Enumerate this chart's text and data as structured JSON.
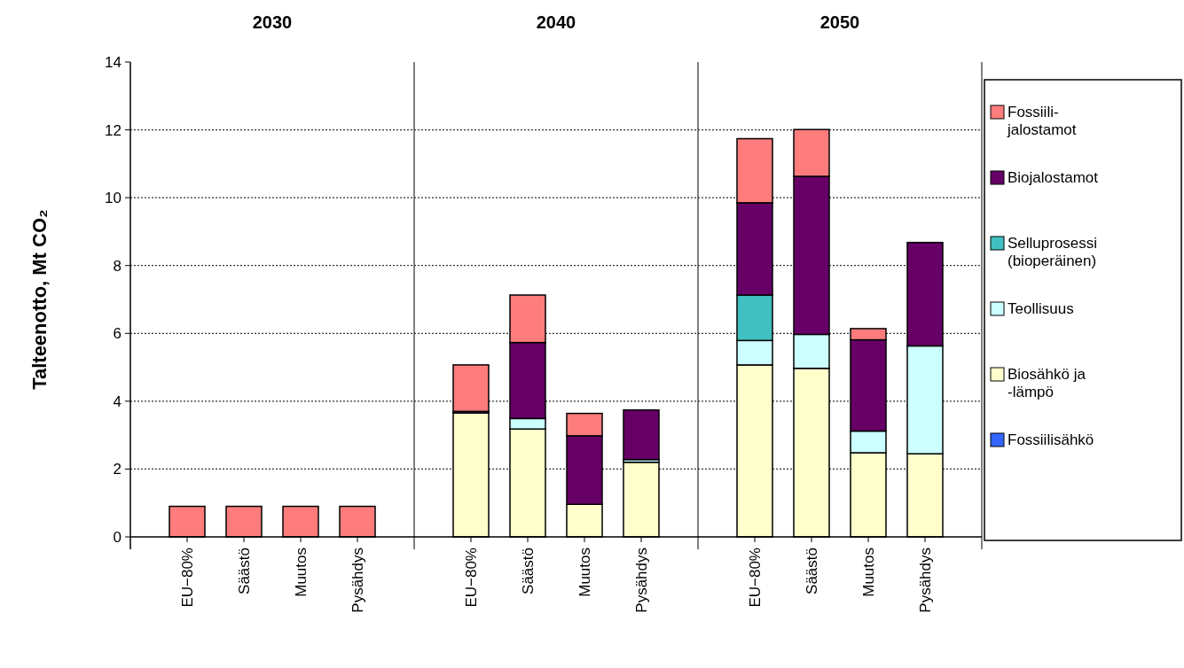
{
  "chart_data": [
    {
      "type": "bar",
      "title": "2030",
      "ylabel": "Talteenotto, Mt CO₂",
      "categories": [
        "EU−80%",
        "Säästö",
        "Muutos",
        "Pysähdys"
      ],
      "stacked": true,
      "ylim": [
        0,
        14
      ],
      "yticks": [
        0,
        2,
        4,
        6,
        8,
        10,
        12,
        14
      ],
      "grid": "y",
      "series": [
        {
          "color": "#ff7c7c",
          "values": [
            0.9,
            0.9,
            0.9,
            0.9
          ]
        }
      ]
    },
    {
      "type": "bar",
      "title": "2040",
      "categories": [
        "EU−80%",
        "Säästö",
        "Muutos",
        "Pysähdys"
      ],
      "stacked": true,
      "ylim": [
        0,
        14
      ],
      "yticks": [
        0,
        2,
        4,
        6,
        8,
        10,
        12,
        14
      ],
      "grid": "y",
      "tick_labels": "x",
      "series": [
        {
          "color": "#ffffcc",
          "values": [
            3.65,
            3.18,
            0.96,
            2.2
          ]
        },
        {
          "color": "#ccffff",
          "values": [
            0,
            0.31,
            0,
            0.08
          ]
        },
        {
          "color": "#660066",
          "values": [
            0.05,
            2.24,
            2.02,
            1.46
          ]
        },
        {
          "color": "#ff7c7c",
          "values": [
            1.37,
            1.4,
            0.66,
            0
          ]
        }
      ]
    },
    {
      "type": "bar",
      "title": "2050",
      "categories": [
        "EU−80%",
        "Säästö",
        "Muutos",
        "Pysähdys"
      ],
      "stacked": true,
      "ylim": [
        0,
        14
      ],
      "yticks": [
        0,
        2,
        4,
        6,
        8,
        10,
        12,
        14
      ],
      "grid": "y",
      "tick_labels": "x",
      "legend": "right",
      "series": [
        {
          "name": "Fossiilisähkö",
          "color": "#3366ff",
          "values": [
            null,
            0,
            0,
            null
          ]
        },
        {
          "name": "Biosähkö ja -lämpö",
          "color": "#ffffcc",
          "values": [
            5.07,
            4.97,
            2.48,
            2.45
          ]
        },
        {
          "name": "Teollisuus",
          "color": "#ccffff",
          "values": [
            0.72,
            1.0,
            0.64,
            3.18
          ]
        },
        {
          "name": "Selluprosessi (bioperäinen)",
          "color": "#40c0c0",
          "values": [
            1.34,
            0,
            0,
            0
          ]
        },
        {
          "name": "Biojalostamot",
          "color": "#660066",
          "values": [
            2.72,
            4.66,
            2.69,
            3.05
          ]
        },
        {
          "name": "Fossiili-jalostamot",
          "color": "#ff7c7c",
          "values": [
            1.89,
            1.38,
            0.33,
            0
          ]
        }
      ]
    }
  ]
}
